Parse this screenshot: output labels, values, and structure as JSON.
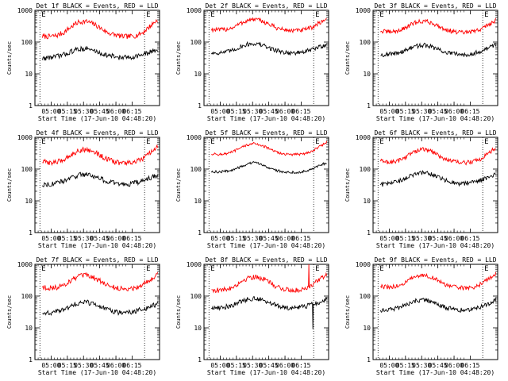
{
  "chart_data": [
    {
      "type": "line",
      "title": "Det 1f BLACK = Events, RED = LLD",
      "xlabel": "Start Time (17-Jun-10 04:48:20)",
      "ylabel": "Counts/sec",
      "x_ticks": [
        "05:00",
        "05:15",
        "05:30",
        "05:45",
        "06:00",
        "06:15"
      ],
      "y_ticks": [
        "1",
        "10",
        "100",
        "1000"
      ],
      "yscale": "log",
      "ylim": [
        1,
        1000
      ],
      "markers": [
        "E",
        "E"
      ],
      "series": [
        {
          "color": "#ff0000",
          "base": [
            150,
            150,
            160,
            200,
            300,
            420,
            450,
            380,
            280,
            200,
            170,
            150,
            150,
            160,
            200,
            320,
            500
          ],
          "noise": 0.08,
          "spikes": []
        },
        {
          "color": "#000000",
          "base": [
            30,
            33,
            35,
            40,
            50,
            60,
            62,
            55,
            45,
            38,
            35,
            32,
            33,
            36,
            40,
            48,
            60
          ],
          "noise": 0.08,
          "spikes": []
        }
      ]
    },
    {
      "type": "line",
      "title": "Det 2f BLACK = Events, RED = LLD",
      "xlabel": "Start Time (17-Jun-10 04:48:20)",
      "ylabel": "Counts/sec",
      "x_ticks": [
        "05:00",
        "05:15",
        "05:30",
        "05:45",
        "06:00",
        "06:15"
      ],
      "y_ticks": [
        "1",
        "10",
        "100",
        "1000"
      ],
      "yscale": "log",
      "ylim": [
        1,
        1000
      ],
      "markers": [
        "E",
        "E"
      ],
      "series": [
        {
          "color": "#ff0000",
          "base": [
            250,
            240,
            250,
            290,
            380,
            480,
            520,
            460,
            360,
            280,
            245,
            230,
            230,
            245,
            290,
            400,
            550
          ],
          "noise": 0.07,
          "spikes": []
        },
        {
          "color": "#000000",
          "base": [
            45,
            46,
            48,
            55,
            70,
            85,
            90,
            80,
            65,
            55,
            48,
            45,
            46,
            50,
            58,
            70,
            85
          ],
          "noise": 0.07,
          "spikes": []
        }
      ]
    },
    {
      "type": "line",
      "title": "Det 3f BLACK = Events, RED = LLD",
      "xlabel": "Start Time (17-Jun-10 04:48:20)",
      "ylabel": "Counts/sec",
      "x_ticks": [
        "05:00",
        "05:15",
        "05:30",
        "05:45",
        "06:00",
        "06:15"
      ],
      "y_ticks": [
        "1",
        "10",
        "100",
        "1000"
      ],
      "yscale": "log",
      "ylim": [
        1,
        1000
      ],
      "markers": [
        "E",
        "E"
      ],
      "series": [
        {
          "color": "#ff0000",
          "base": [
            220,
            210,
            215,
            250,
            330,
            420,
            460,
            410,
            320,
            250,
            215,
            200,
            200,
            215,
            260,
            350,
            480
          ],
          "noise": 0.07,
          "spikes": []
        },
        {
          "color": "#000000",
          "base": [
            40,
            41,
            43,
            50,
            62,
            75,
            80,
            72,
            58,
            48,
            43,
            40,
            41,
            45,
            52,
            65,
            85
          ],
          "noise": 0.07,
          "spikes": []
        }
      ]
    },
    {
      "type": "line",
      "title": "Det 4f BLACK = Events, RED = LLD",
      "xlabel": "Start Time (17-Jun-10 04:48:20)",
      "ylabel": "Counts/sec",
      "x_ticks": [
        "05:00",
        "05:15",
        "05:30",
        "05:45",
        "06:00",
        "06:15"
      ],
      "y_ticks": [
        "1",
        "10",
        "100",
        "1000"
      ],
      "yscale": "log",
      "ylim": [
        1,
        1000
      ],
      "markers": [
        "E",
        "E"
      ],
      "series": [
        {
          "color": "#ff0000",
          "base": [
            170,
            160,
            165,
            200,
            280,
            380,
            420,
            360,
            270,
            200,
            170,
            155,
            155,
            170,
            210,
            320,
            480
          ],
          "noise": 0.08,
          "spikes": []
        },
        {
          "color": "#000000",
          "base": [
            32,
            34,
            36,
            42,
            52,
            65,
            70,
            62,
            50,
            40,
            36,
            33,
            34,
            37,
            42,
            52,
            65
          ],
          "noise": 0.08,
          "spikes": []
        }
      ]
    },
    {
      "type": "line",
      "title": "Det 5f BLACK = Events, RED = LLD",
      "xlabel": "Start Time (17-Jun-10 04:48:20)",
      "ylabel": "Counts/sec",
      "x_ticks": [
        "05:00",
        "05:15",
        "05:30",
        "05:45",
        "06:00",
        "06:15"
      ],
      "y_ticks": [
        "1",
        "10",
        "100",
        "1000"
      ],
      "yscale": "log",
      "ylim": [
        1,
        1000
      ],
      "markers": [
        "E",
        "E"
      ],
      "series": [
        {
          "color": "#ff0000",
          "base": [
            300,
            290,
            300,
            350,
            450,
            580,
            640,
            560,
            430,
            340,
            300,
            285,
            290,
            310,
            370,
            500,
            700
          ],
          "noise": 0.04,
          "spikes": []
        },
        {
          "color": "#000000",
          "base": [
            80,
            82,
            85,
            95,
            115,
            145,
            160,
            140,
            110,
            90,
            82,
            78,
            80,
            86,
            100,
            125,
            160
          ],
          "noise": 0.04,
          "spikes": []
        }
      ]
    },
    {
      "type": "line",
      "title": "Det 6f BLACK = Events, RED = LLD",
      "xlabel": "Start Time (17-Jun-10 04:48:20)",
      "ylabel": "Counts/sec",
      "x_ticks": [
        "05:00",
        "05:15",
        "05:30",
        "05:45",
        "06:00",
        "06:15"
      ],
      "y_ticks": [
        "1",
        "10",
        "100",
        "1000"
      ],
      "yscale": "log",
      "ylim": [
        1,
        1000
      ],
      "markers": [
        "E",
        "E"
      ],
      "series": [
        {
          "color": "#ff0000",
          "base": [
            180,
            165,
            170,
            205,
            285,
            380,
            420,
            365,
            275,
            205,
            175,
            160,
            160,
            175,
            215,
            320,
            460
          ],
          "noise": 0.07,
          "spikes": []
        },
        {
          "color": "#000000",
          "base": [
            32,
            35,
            38,
            45,
            58,
            72,
            78,
            68,
            55,
            44,
            38,
            35,
            36,
            40,
            46,
            56,
            70
          ],
          "noise": 0.07,
          "spikes": []
        }
      ]
    },
    {
      "type": "line",
      "title": "Det 7f BLACK = Events, RED = LLD",
      "xlabel": "Start Time (17-Jun-10 04:48:20)",
      "ylabel": "Counts/sec",
      "x_ticks": [
        "05:00",
        "05:15",
        "05:30",
        "05:45",
        "06:00",
        "06:15"
      ],
      "y_ticks": [
        "1",
        "10",
        "100",
        "1000"
      ],
      "yscale": "log",
      "ylim": [
        1,
        1000
      ],
      "markers": [
        "E",
        "E"
      ],
      "series": [
        {
          "color": "#ff0000",
          "base": [
            190,
            180,
            185,
            225,
            310,
            410,
            450,
            390,
            295,
            220,
            185,
            170,
            170,
            185,
            230,
            340,
            480
          ],
          "noise": 0.08,
          "spikes": []
        },
        {
          "color": "#000000",
          "base": [
            28,
            30,
            32,
            38,
            48,
            60,
            65,
            57,
            46,
            37,
            32,
            30,
            31,
            34,
            38,
            46,
            55
          ],
          "noise": 0.08,
          "spikes": []
        }
      ]
    },
    {
      "type": "line",
      "title": "Det 8f BLACK = Events, RED = LLD",
      "xlabel": "Start Time (17-Jun-10 04:48:20)",
      "ylabel": "Counts/sec",
      "x_ticks": [
        "05:00",
        "05:15",
        "05:30",
        "05:45",
        "06:00",
        "06:15"
      ],
      "y_ticks": [
        "1",
        "10",
        "100",
        "1000"
      ],
      "yscale": "log",
      "ylim": [
        1,
        1000
      ],
      "markers": [
        "E",
        "E"
      ],
      "series": [
        {
          "color": "#ff0000",
          "base": [
            160,
            150,
            160,
            195,
            270,
            370,
            410,
            360,
            270,
            200,
            165,
            150,
            155,
            175,
            230,
            340,
            450
          ],
          "noise": 0.08,
          "spikes": [
            [
              13.5,
              1000
            ]
          ]
        },
        {
          "color": "#000000",
          "base": [
            42,
            44,
            46,
            52,
            65,
            80,
            85,
            76,
            62,
            50,
            45,
            42,
            43,
            47,
            54,
            66,
            80
          ],
          "noise": 0.08,
          "spikes": [
            [
              14.1,
              9
            ]
          ]
        }
      ]
    },
    {
      "type": "line",
      "title": "Det 9f BLACK = Events, RED = LLD",
      "xlabel": "Start Time (17-Jun-10 04:48:20)",
      "ylabel": "Counts/sec",
      "x_ticks": [
        "05:00",
        "05:15",
        "05:30",
        "05:45",
        "06:00",
        "06:15"
      ],
      "y_ticks": [
        "1",
        "10",
        "100",
        "1000"
      ],
      "yscale": "log",
      "ylim": [
        1,
        1000
      ],
      "markers": [
        "E",
        "E"
      ],
      "series": [
        {
          "color": "#ff0000",
          "base": [
            200,
            190,
            195,
            235,
            320,
            420,
            460,
            400,
            305,
            230,
            195,
            180,
            180,
            195,
            240,
            350,
            500
          ],
          "noise": 0.07,
          "spikes": []
        },
        {
          "color": "#000000",
          "base": [
            35,
            37,
            40,
            46,
            58,
            72,
            76,
            67,
            54,
            44,
            39,
            36,
            37,
            41,
            47,
            58,
            75
          ],
          "noise": 0.07,
          "spikes": []
        }
      ]
    }
  ]
}
